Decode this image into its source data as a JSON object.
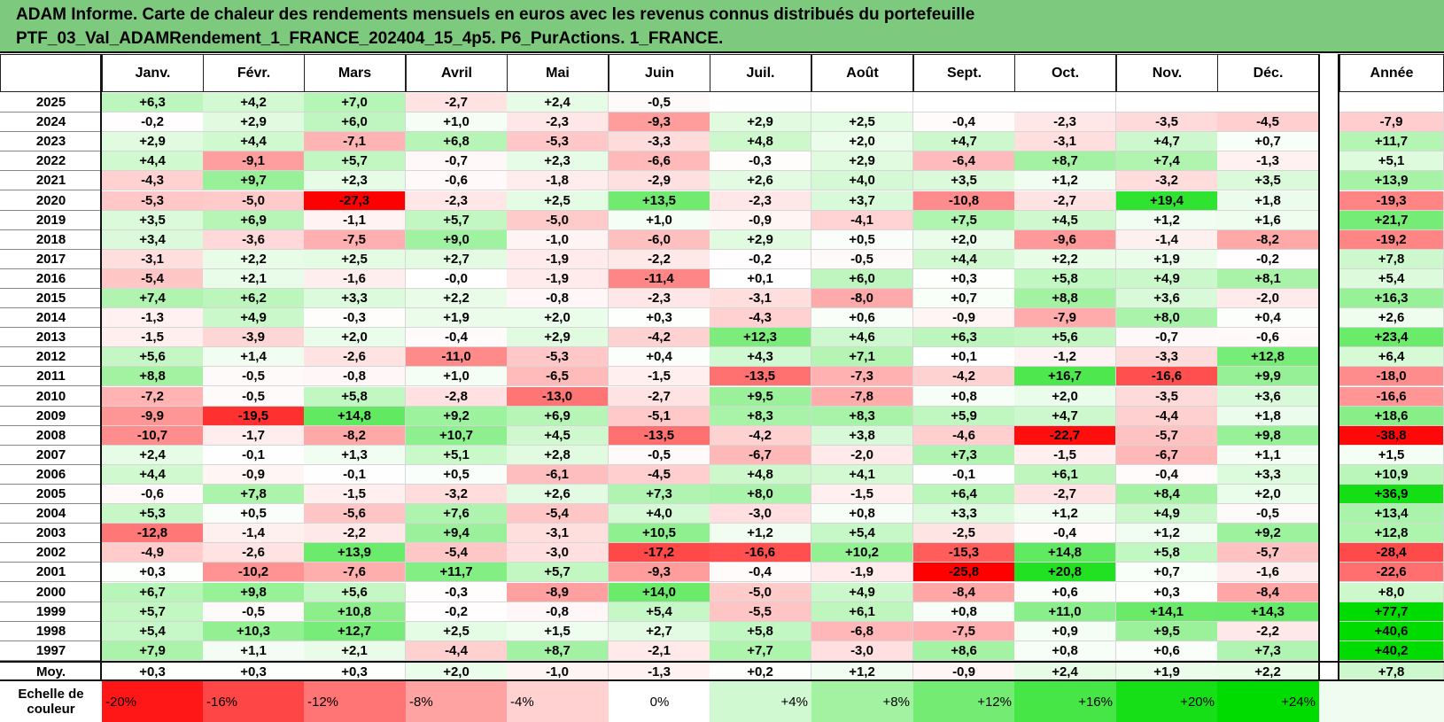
{
  "title": {
    "line1": "ADAM Informe. Carte de chaleur des rendements mensuels en euros avec les revenus connus distribués du portefeuille",
    "line2": "PTF_03_Val_ADAMRendement_1_FRANCE_202404_15_4p5. P6_PurActions. 1_FRANCE."
  },
  "corner_label": "",
  "colors": {
    "negative_max": "#ff0000",
    "positive_max": "#00dd00",
    "neutral": "#ffffff",
    "title_bg": "#7dc97d"
  },
  "chart_data": {
    "type": "heatmap",
    "columns": [
      "Janv.",
      "Févr.",
      "Mars",
      "Avril",
      "Mai",
      "Juin",
      "Juil.",
      "Août",
      "Sept.",
      "Oct.",
      "Nov.",
      "Déc."
    ],
    "year_column": "Année",
    "rows": [
      {
        "year": "2025",
        "m": [
          "+6,3",
          "+4,2",
          "+7,0",
          "-2,7",
          "+2,4",
          "-0,5",
          "",
          "",
          "",
          "",
          "",
          ""
        ],
        "y": ""
      },
      {
        "year": "2024",
        "m": [
          "-0,2",
          "+2,9",
          "+6,0",
          "+1,0",
          "-2,3",
          "-9,3",
          "+2,9",
          "+2,5",
          "-0,4",
          "-2,3",
          "-3,5",
          "-4,5"
        ],
        "y": "-7,9"
      },
      {
        "year": "2023",
        "m": [
          "+2,9",
          "+4,4",
          "-7,1",
          "+6,8",
          "-5,3",
          "-3,3",
          "+4,8",
          "+2,0",
          "+4,7",
          "-3,1",
          "+4,7",
          "+0,7"
        ],
        "y": "+11,7"
      },
      {
        "year": "2022",
        "m": [
          "+4,4",
          "-9,1",
          "+5,7",
          "-0,7",
          "+2,3",
          "-6,6",
          "-0,3",
          "+2,9",
          "-6,4",
          "+8,7",
          "+7,4",
          "-1,3"
        ],
        "y": "+5,1"
      },
      {
        "year": "2021",
        "m": [
          "-4,3",
          "+9,7",
          "+2,3",
          "-0,6",
          "-1,8",
          "-2,9",
          "+2,6",
          "+4,0",
          "+3,5",
          "+1,2",
          "-3,2",
          "+3,5"
        ],
        "y": "+13,9"
      },
      {
        "year": "2020",
        "m": [
          "-5,3",
          "-5,0",
          "-27,3",
          "-2,3",
          "+2,5",
          "+13,5",
          "-2,3",
          "+3,7",
          "-10,8",
          "-2,7",
          "+19,4",
          "+1,8"
        ],
        "y": "-19,3"
      },
      {
        "year": "2019",
        "m": [
          "+3,5",
          "+6,9",
          "-1,1",
          "+5,7",
          "-5,0",
          "+1,0",
          "-0,9",
          "-4,1",
          "+7,5",
          "+4,5",
          "+1,2",
          "+1,6"
        ],
        "y": "+21,7"
      },
      {
        "year": "2018",
        "m": [
          "+3,4",
          "-3,6",
          "-7,5",
          "+9,0",
          "-1,0",
          "-6,0",
          "+2,9",
          "+0,5",
          "+2,0",
          "-9,6",
          "-1,4",
          "-8,2"
        ],
        "y": "-19,2"
      },
      {
        "year": "2017",
        "m": [
          "-3,1",
          "+2,2",
          "+2,5",
          "+2,7",
          "-1,9",
          "-2,2",
          "-0,2",
          "-0,5",
          "+4,4",
          "+2,2",
          "+1,9",
          "-0,2"
        ],
        "y": "+7,8"
      },
      {
        "year": "2016",
        "m": [
          "-5,4",
          "+2,1",
          "-1,6",
          "-0,0",
          "-1,9",
          "-11,4",
          "+0,1",
          "+6,0",
          "+0,3",
          "+5,8",
          "+4,9",
          "+8,1"
        ],
        "y": "+5,4"
      },
      {
        "year": "2015",
        "m": [
          "+7,4",
          "+6,2",
          "+3,3",
          "+2,2",
          "-0,8",
          "-2,3",
          "-3,1",
          "-8,0",
          "+0,7",
          "+8,8",
          "+3,6",
          "-2,0"
        ],
        "y": "+16,3"
      },
      {
        "year": "2014",
        "m": [
          "-1,3",
          "+4,9",
          "-0,3",
          "+1,9",
          "+2,0",
          "+0,3",
          "-4,3",
          "+0,6",
          "-0,9",
          "-7,9",
          "+8,0",
          "+0,4"
        ],
        "y": "+2,6"
      },
      {
        "year": "2013",
        "m": [
          "-1,5",
          "-3,9",
          "+2,0",
          "-0,4",
          "+2,9",
          "-4,2",
          "+12,3",
          "+4,6",
          "+6,3",
          "+5,6",
          "-0,7",
          "-0,6"
        ],
        "y": "+23,4"
      },
      {
        "year": "2012",
        "m": [
          "+5,6",
          "+1,4",
          "-2,6",
          "-11,0",
          "-5,3",
          "+0,4",
          "+4,3",
          "+7,1",
          "+0,1",
          "-1,2",
          "-3,3",
          "+12,8"
        ],
        "y": "+6,4"
      },
      {
        "year": "2011",
        "m": [
          "+8,8",
          "-0,5",
          "-0,8",
          "+1,0",
          "-6,5",
          "-1,5",
          "-13,5",
          "-7,3",
          "-4,2",
          "+16,7",
          "-16,6",
          "+9,9"
        ],
        "y": "-18,0"
      },
      {
        "year": "2010",
        "m": [
          "-7,2",
          "-0,5",
          "+5,8",
          "-2,8",
          "-13,0",
          "-2,7",
          "+9,5",
          "-7,8",
          "+0,8",
          "+2,0",
          "-3,5",
          "+3,6"
        ],
        "y": "-16,6"
      },
      {
        "year": "2009",
        "m": [
          "-9,9",
          "-19,5",
          "+14,8",
          "+9,2",
          "+6,9",
          "-5,1",
          "+8,3",
          "+8,3",
          "+5,9",
          "+4,7",
          "-4,4",
          "+1,8"
        ],
        "y": "+18,6"
      },
      {
        "year": "2008",
        "m": [
          "-10,7",
          "-1,7",
          "-8,2",
          "+10,7",
          "+4,5",
          "-13,5",
          "-4,2",
          "+3,8",
          "-4,6",
          "-22,7",
          "-5,7",
          "+9,8"
        ],
        "y": "-38,8"
      },
      {
        "year": "2007",
        "m": [
          "+2,4",
          "-0,1",
          "+1,3",
          "+5,1",
          "+2,8",
          "-0,5",
          "-6,7",
          "-2,0",
          "+7,3",
          "-1,5",
          "-6,7",
          "+1,1"
        ],
        "y": "+1,5"
      },
      {
        "year": "2006",
        "m": [
          "+4,4",
          "-0,9",
          "-0,1",
          "+0,5",
          "-6,1",
          "-4,5",
          "+4,8",
          "+4,1",
          "-0,1",
          "+6,1",
          "-0,4",
          "+3,3"
        ],
        "y": "+10,9"
      },
      {
        "year": "2005",
        "m": [
          "-0,6",
          "+7,8",
          "-1,5",
          "-3,2",
          "+2,6",
          "+7,3",
          "+8,0",
          "-1,5",
          "+6,4",
          "-2,7",
          "+8,4",
          "+2,0"
        ],
        "y": "+36,9"
      },
      {
        "year": "2004",
        "m": [
          "+5,3",
          "+0,5",
          "-5,6",
          "+7,6",
          "-5,4",
          "+4,0",
          "-3,0",
          "+0,8",
          "+3,3",
          "+1,2",
          "+4,9",
          "-0,5"
        ],
        "y": "+13,4"
      },
      {
        "year": "2003",
        "m": [
          "-12,8",
          "-1,4",
          "-2,2",
          "+9,4",
          "-3,1",
          "+10,5",
          "+1,2",
          "+5,4",
          "-2,5",
          "-0,4",
          "+1,2",
          "+9,2"
        ],
        "y": "+12,8"
      },
      {
        "year": "2002",
        "m": [
          "-4,9",
          "-2,6",
          "+13,9",
          "-5,4",
          "-3,0",
          "-17,2",
          "-16,6",
          "+10,2",
          "-15,3",
          "+14,8",
          "+5,8",
          "-5,7"
        ],
        "y": "-28,4"
      },
      {
        "year": "2001",
        "m": [
          "+0,3",
          "-10,2",
          "-7,6",
          "+11,7",
          "+5,7",
          "-9,3",
          "-0,4",
          "-1,9",
          "-25,8",
          "+20,8",
          "+0,7",
          "-1,6"
        ],
        "y": "-22,6"
      },
      {
        "year": "2000",
        "m": [
          "+6,7",
          "+9,8",
          "+5,6",
          "-0,3",
          "-8,9",
          "+14,0",
          "-5,0",
          "+4,9",
          "-8,4",
          "+0,6",
          "+0,3",
          "-8,4"
        ],
        "y": "+8,0"
      },
      {
        "year": "1999",
        "m": [
          "+5,7",
          "-0,5",
          "+10,8",
          "-0,2",
          "-0,8",
          "+5,4",
          "-5,5",
          "+6,1",
          "+0,8",
          "+11,0",
          "+14,1",
          "+14,3"
        ],
        "y": "+77,7"
      },
      {
        "year": "1998",
        "m": [
          "+5,4",
          "+10,3",
          "+12,7",
          "+2,5",
          "+1,5",
          "+2,7",
          "+5,8",
          "-6,8",
          "-7,5",
          "+0,9",
          "+9,5",
          "-2,2"
        ],
        "y": "+40,6"
      },
      {
        "year": "1997",
        "m": [
          "+7,9",
          "+1,1",
          "+2,1",
          "-4,4",
          "+8,7",
          "-2,1",
          "+7,7",
          "-3,0",
          "+8,6",
          "+0,8",
          "+0,6",
          "+7,3"
        ],
        "y": "+40,2"
      }
    ],
    "average": {
      "label": "Moy.",
      "m": [
        "+0,3",
        "+0,3",
        "+0,3",
        "+2,0",
        "-1,0",
        "-1,3",
        "+0,2",
        "+1,2",
        "-0,9",
        "+2,4",
        "+1,9",
        "+2,2"
      ],
      "y": "+7,8"
    },
    "scale": {
      "label_line1": "Echelle de",
      "label_line2": "couleur",
      "steps": [
        "-20%",
        "-16%",
        "-12%",
        "-8%",
        "-4%",
        "0%",
        "+4%",
        "+8%",
        "+12%",
        "+16%",
        "+20%",
        "+24%"
      ],
      "values": [
        -20,
        -16,
        -12,
        -8,
        -4,
        0,
        4,
        8,
        12,
        16,
        20,
        24
      ],
      "trailing_label": ""
    }
  }
}
